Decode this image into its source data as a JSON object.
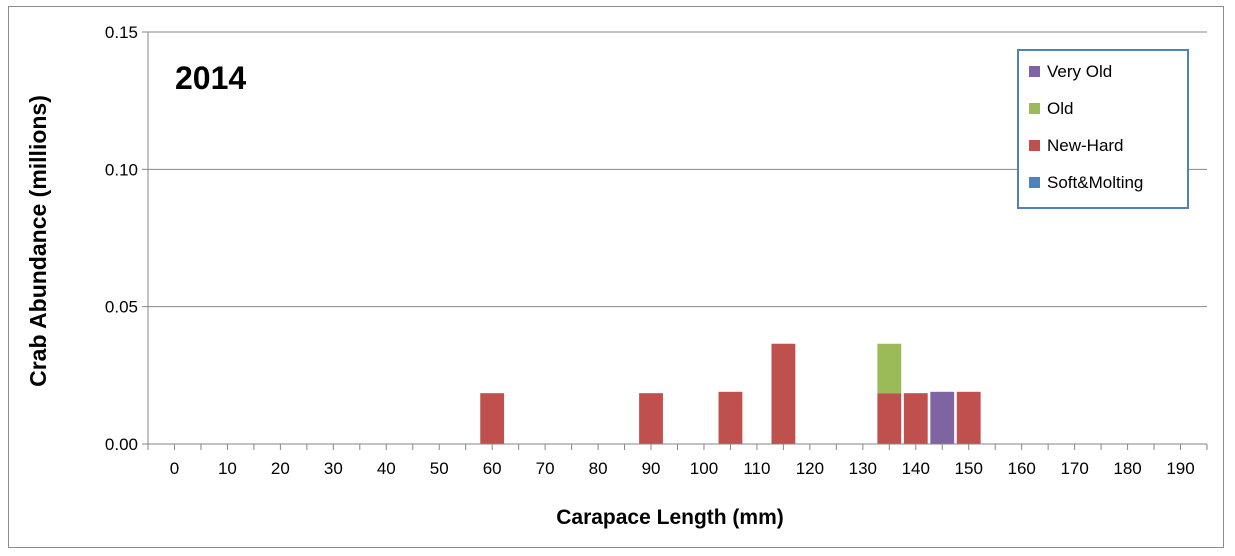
{
  "chart_data": {
    "type": "bar",
    "stacked": true,
    "annotation": "2014",
    "xlabel": "Carapace Length (mm)",
    "ylabel": "Crab Abundance (millions)",
    "xlim": [
      -5,
      195
    ],
    "ylim": [
      0,
      0.15
    ],
    "yticks": [
      "0.00",
      "0.05",
      "0.10",
      "0.15"
    ],
    "xticks": [
      0,
      10,
      20,
      30,
      40,
      50,
      60,
      70,
      80,
      90,
      100,
      110,
      120,
      130,
      140,
      150,
      160,
      170,
      180,
      190
    ],
    "grid": true,
    "legend_position": "top-right",
    "bin_width": 5,
    "series": [
      {
        "name": "Soft&Molting",
        "color": "#4f81bd",
        "points": []
      },
      {
        "name": "New-Hard",
        "color": "#c0504d",
        "points": [
          {
            "x": 60,
            "y": 0.0185
          },
          {
            "x": 90,
            "y": 0.0185
          },
          {
            "x": 105,
            "y": 0.019
          },
          {
            "x": 115,
            "y": 0.0365
          },
          {
            "x": 135,
            "y": 0.0185
          },
          {
            "x": 140,
            "y": 0.0185
          },
          {
            "x": 150,
            "y": 0.019
          }
        ]
      },
      {
        "name": "Old",
        "color": "#9bbb59",
        "points": [
          {
            "x": 135,
            "y": 0.018
          }
        ]
      },
      {
        "name": "Very Old",
        "color": "#8064a2",
        "points": [
          {
            "x": 145,
            "y": 0.019
          }
        ]
      }
    ],
    "legend_order": [
      "Very Old",
      "Old",
      "New-Hard",
      "Soft&Molting"
    ]
  }
}
